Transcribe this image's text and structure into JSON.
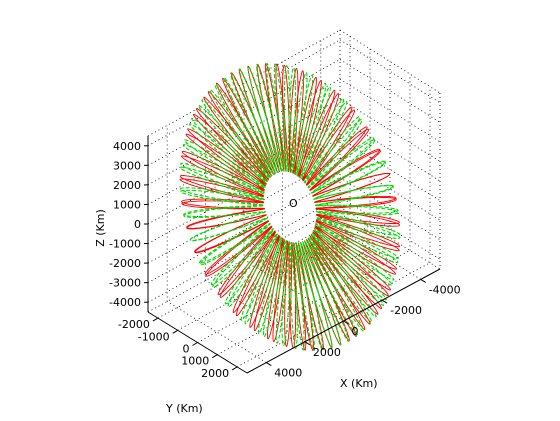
{
  "chart_data": {
    "type": "line3d",
    "title": "",
    "xlabel": "X (Km)",
    "ylabel": "Y (Km)",
    "zlabel": "Z (Km)",
    "x_ticks": [
      "-4000",
      "-2000",
      "0",
      "2000",
      "4000"
    ],
    "y_ticks": [
      "-2000",
      "-1000",
      "0",
      "1000",
      "2000"
    ],
    "z_ticks": [
      "4000",
      "3000",
      "2000",
      "1000",
      "0",
      "-1000",
      "-2000",
      "-3000",
      "-4000"
    ],
    "xlim": [
      -5000,
      5000
    ],
    "ylim": [
      -2500,
      2500
    ],
    "zlim": [
      -4500,
      4500
    ],
    "grid": true,
    "center_marker": "O",
    "series": [
      {
        "color": "#ff0000",
        "style": "solid",
        "turns": 36,
        "samples_per_turn": 60
      },
      {
        "color": "#00dd00",
        "style": "dashed",
        "turns": 36,
        "samples_per_turn": 60
      }
    ],
    "torus": {
      "major_radius_km": 2950,
      "minor_radius_km": 1750
    }
  }
}
